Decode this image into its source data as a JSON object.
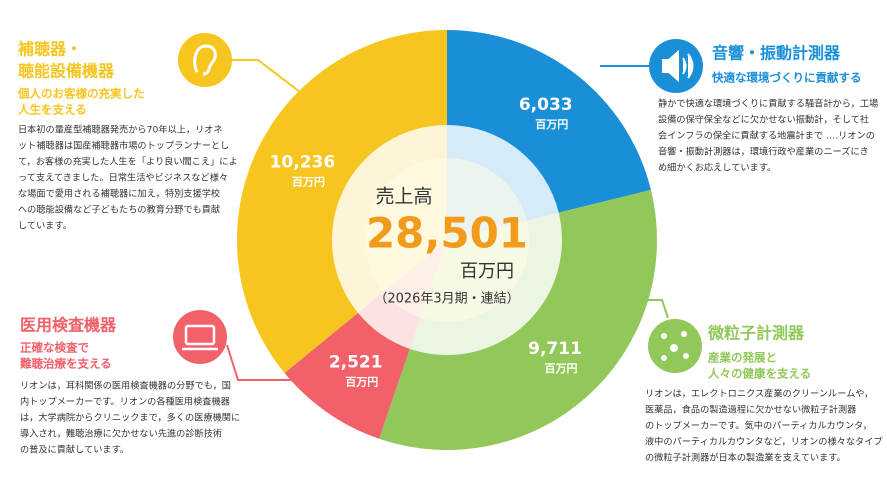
{
  "chart_data": {
    "type": "donut",
    "values": [
      6033,
      9711,
      2521,
      10236
    ],
    "value_labels": [
      "6,033",
      "9,711",
      "2,521",
      "10,236"
    ],
    "colors": [
      "#1a8fd8",
      "#92c85a",
      "#f2616a",
      "#f7c51f"
    ],
    "unit": "百万円",
    "center": {
      "title": "売上高",
      "total": "28,501",
      "unit": "百万円",
      "period": "（2026年3月期・連結）"
    }
  },
  "panels": [
    {
      "title": [
        "音響・振動計測器"
      ],
      "subtitle": [
        "快適な環境づくりに貢献する"
      ],
      "body": [
        "静かで快適な環境づくりに貢献する騒音計から，工場",
        "設備の保守保全などに欠かせない振動計，そして社",
        "会インフラの保全に貢献する地震計まで ….リオンの",
        "音響・振動計測器は，環境行政や産業のニーズにき",
        "め細かくお応えしています。"
      ]
    },
    {
      "title": [
        "微粒子計測器"
      ],
      "subtitle": [
        "産業の発展と",
        "人々の健康を支える"
      ],
      "body": [
        "リオンは，エレクトロニクス産業のクリーンルームや，",
        "医薬品，食品の製造過程に欠かせない微粒子計測器",
        "のトップメーカーです。気中のパーティカルカウンタ，",
        "液中のパーティカルカウンタなど，リオンの様々なタイプ",
        "の微粒子計測器が日本の製造業を支えています。"
      ]
    },
    {
      "title": [
        "医用検査機器"
      ],
      "subtitle": [
        "正確な検査で",
        "難聴治療を支える"
      ],
      "body": [
        "リオンは，耳科関係の医用検査機器の分野でも，国",
        "内トップメーカーです。リオンの各種医用検査機器",
        "は，大学病院からクリニックまで，多くの医療機関に",
        "導入され，難聴治療に欠かせない先進の診断技術",
        "の普及に貢献しています。"
      ]
    },
    {
      "title": [
        "補聴器・",
        "聴能設備機器"
      ],
      "subtitle": [
        "個人のお客様の充実した",
        "人生を支える"
      ],
      "body": [
        "日本初の量産型補聴器発売から70年以上，リオネ",
        "ット補聴器は国産補聴器市場のトップランナーとし",
        "て，お客様の充実した人生を「より良い聞こえ」によ",
        "って支えてきました。日常生活やビジネスなど様々",
        "な場面で愛用される補聴器に加え，特別支援学校",
        "への聴能設備など子どもたちの教育分野でも貢献",
        "しています。"
      ]
    }
  ]
}
